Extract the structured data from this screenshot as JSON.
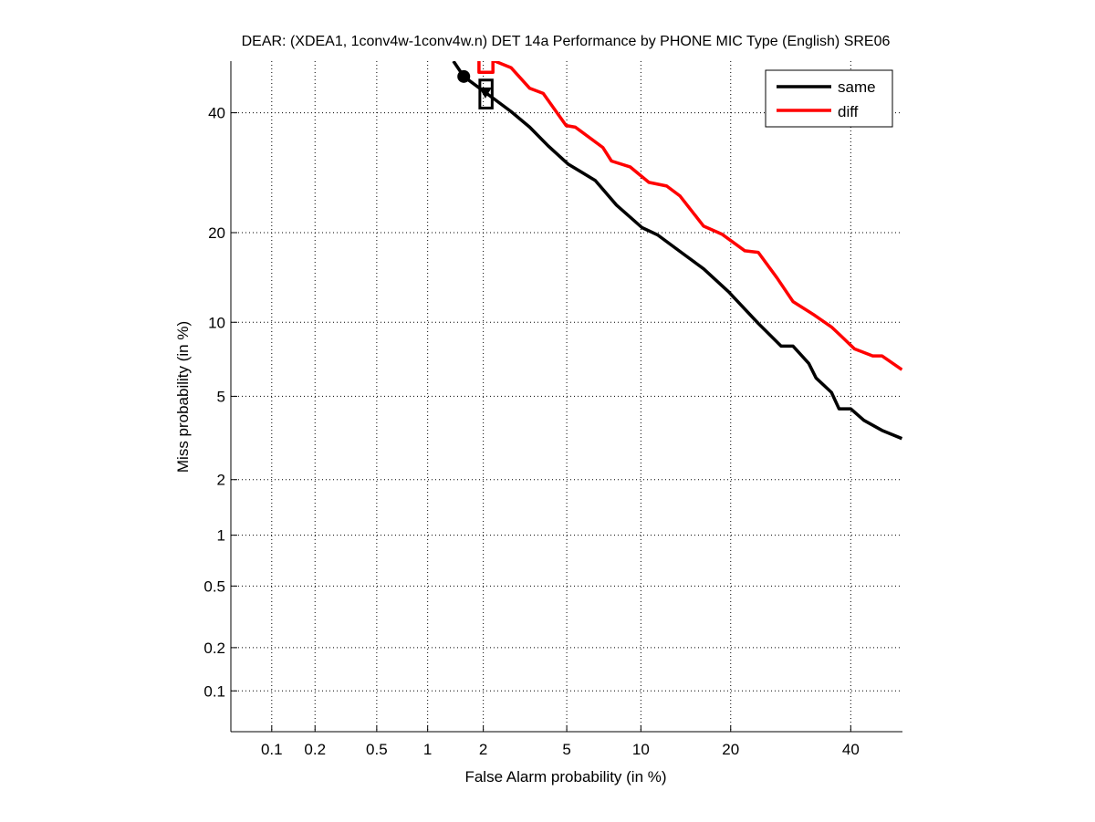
{
  "chart_data": {
    "type": "line",
    "title": "DEAR: (XDEA1, 1conv4w-1conv4w.n) DET 14a Performance by PHONE MIC Type (English) SRE06",
    "xlabel": "False Alarm probability (in %)",
    "ylabel": "Miss probability (in %)",
    "xscale": "normal-deviate",
    "yscale": "normal-deviate",
    "xlim": [
      0.05,
      50
    ],
    "ylim": [
      0.05,
      50
    ],
    "xticks": [
      0.1,
      0.2,
      0.5,
      1,
      2,
      5,
      10,
      20,
      40
    ],
    "xtick_labels": [
      "0.1",
      "0.2",
      "0.5",
      "1",
      "2",
      "5",
      "10",
      "20",
      "40"
    ],
    "yticks": [
      0.1,
      0.2,
      0.5,
      1,
      2,
      5,
      10,
      20,
      40
    ],
    "ytick_labels": [
      "0.1",
      "0.2",
      "0.5",
      "1",
      "2",
      "5",
      "10",
      "20",
      "40"
    ],
    "grid": true,
    "legend_position": "top-right",
    "series": [
      {
        "name": "same",
        "color": "#000000",
        "x": [
          1.39,
          1.58,
          2.24,
          2.76,
          3.39,
          4.12,
          5.06,
          6.62,
          8.06,
          10.1,
          11.5,
          14.4,
          16.5,
          19.7,
          24.0,
          27.6,
          29.6,
          32.3,
          33.6,
          36.4,
          37.8,
          40.0,
          42.5,
          46.0,
          49.9
        ],
        "y": [
          50,
          47.0,
          42.8,
          40.2,
          37.3,
          33.9,
          30.7,
          27.9,
          24.0,
          20.7,
          19.7,
          17.0,
          15.4,
          12.9,
          9.9,
          8.1,
          8.1,
          6.9,
          6.0,
          5.2,
          4.4,
          4.4,
          3.9,
          3.5,
          3.2
        ]
      },
      {
        "name": "diff",
        "color": "#ff0000",
        "x": [
          1.9,
          1.9,
          2.24,
          2.24,
          2.29,
          2.76,
          3.39,
          3.92,
          4.97,
          5.45,
          7.1,
          7.7,
          9.1,
          10.7,
          12.4,
          13.8,
          16.5,
          18.8,
          22.0,
          24.0,
          26.9,
          29.6,
          33.1,
          36.4,
          38.1,
          40.7,
          44.2,
          46.0,
          49.9
        ],
        "y": [
          50,
          47.8,
          47.8,
          50,
          50,
          48.7,
          44.7,
          43.7,
          37.6,
          37.3,
          33.6,
          31.2,
          30.2,
          27.6,
          27.0,
          25.4,
          20.9,
          19.8,
          17.6,
          17.4,
          14.4,
          11.9,
          10.7,
          9.6,
          8.9,
          7.9,
          7.4,
          7.4,
          6.5
        ]
      }
    ],
    "markers": [
      {
        "name": "same-min-dcf-circle",
        "series": "same",
        "x": 1.58,
        "y": 47.0,
        "shape": "circle"
      },
      {
        "name": "same-actual-dcf-triangle",
        "series": "same",
        "x": 2.05,
        "y": 43.8,
        "shape": "triangle"
      },
      {
        "name": "same-confidence-box",
        "series": "same",
        "x_range": [
          1.92,
          2.22
        ],
        "y_range": [
          40.9,
          46.3
        ],
        "shape": "box"
      }
    ]
  }
}
